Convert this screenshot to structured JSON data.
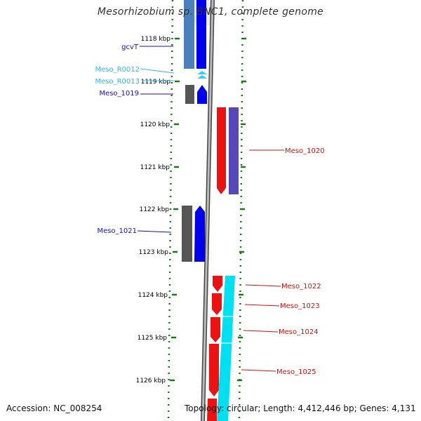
{
  "title": "Mesorhizobium sp. BNC1, complete genome",
  "footer": {
    "accession": "Accession: NC_008254",
    "summary": "Topology: circular; Length: 4,412,446 bp; Genes: 4,131"
  },
  "colors": {
    "background": "#ffffff",
    "backbone": "#888888",
    "tick": "#1a7a1a",
    "label_text": "#000000",
    "forward_label": "#1010c0",
    "rna_label": "#33b5e5",
    "reverse_label": "#cc1111",
    "forward_cds": "#0000ee",
    "forward_gene_shadow": "#4a80bb",
    "forward_gene_grey": "#555555",
    "rna_feature": "#33ccff",
    "reverse_cds": "#ee1111",
    "reverse_gene_purple": "#5548b8",
    "reverse_gene_cyan": "#00e0f0"
  },
  "scale_labels": [
    "1118 kbp",
    "1119 kbp",
    "1120 kbp",
    "1121 kbp",
    "1122 kbp",
    "1123 kbp",
    "1124 kbp",
    "1125 kbp",
    "1126 kbp"
  ],
  "feature_labels": {
    "gcvT": "gcvT",
    "meso_r0012": "Meso_R0012",
    "meso_r0013": "Meso_R0013",
    "meso_1019": "Meso_1019",
    "meso_1020": "Meso_1020",
    "meso_1021": "Meso_1021",
    "meso_1022": "Meso_1022",
    "meso_1023": "Meso_1023",
    "meso_1024": "Meso_1024",
    "meso_1025": "Meso_1025"
  }
}
